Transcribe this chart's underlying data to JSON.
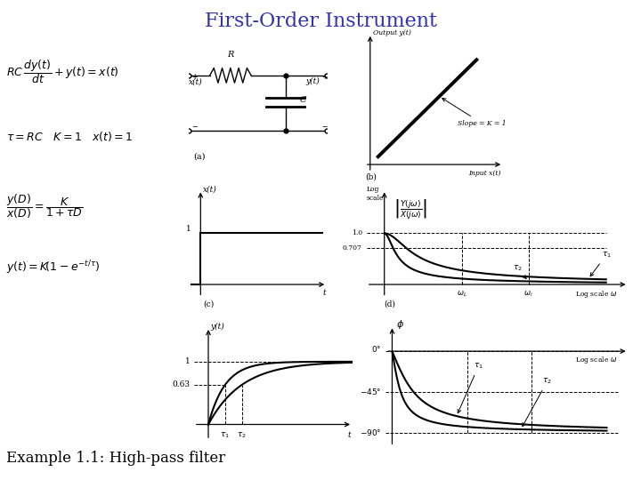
{
  "title": "First-Order Instrument",
  "title_color": "#3333AA",
  "title_fontsize": 16,
  "bg_color": "#ffffff",
  "example_text": "Example 1.1: High-pass filter",
  "eq1": "RC\\,\\dfrac{dy(t)}{dt}+y(t)=x(t)",
  "eq2": "\\tau=RC\\quad K=1\\quad x(t)=1",
  "eq3": "\\dfrac{y(D)}{x(D)}=\\dfrac{K}{1+\\tau D}",
  "eq4": "y(t)=K\\!\\left(1-e^{-t/\\tau}\\right)"
}
